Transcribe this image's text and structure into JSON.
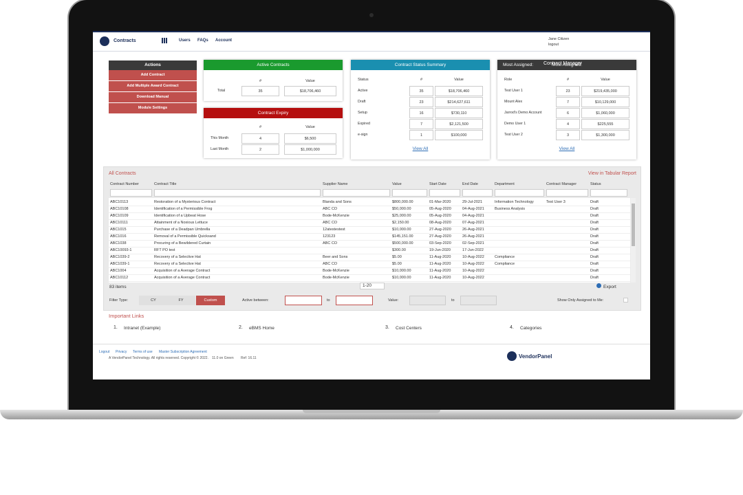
{
  "header": {
    "app": "Contracts",
    "nav": [
      "Users",
      "FAQs",
      "Account"
    ],
    "user": "Jane Citizen",
    "logout": "logout"
  },
  "actions": {
    "title": "Actions",
    "buttons": [
      "Add Contract",
      "Add Multiple Award Contract",
      "Download Manual",
      "Module Settings"
    ]
  },
  "active_contracts": {
    "title": "Active Contracts",
    "columns": [
      "#",
      "Value"
    ],
    "rows": [
      [
        "Total",
        35,
        "$18,706,460"
      ]
    ]
  },
  "contract_expiry": {
    "title": "Contract Expiry",
    "columns": [
      "#",
      "Value"
    ],
    "rows": [
      [
        "This Month",
        4,
        "$6,500"
      ],
      [
        "Last Month",
        2,
        "$1,000,000"
      ]
    ]
  },
  "status_summary": {
    "title": "Contract Status Summary",
    "columns": [
      "Status",
      "#",
      "Value"
    ],
    "rows": [
      [
        "Active",
        35,
        "$18,706,460"
      ],
      [
        "Draft",
        23,
        "$214,627,611"
      ],
      [
        "Setup",
        16,
        "$730,110"
      ],
      [
        "Expired",
        7,
        "$2,121,500"
      ],
      [
        "e-sign",
        1,
        "$100,000"
      ]
    ],
    "link": "View All"
  },
  "most_assigned": {
    "title": "Most Assigned:",
    "selected": "Contract Manager",
    "columns": [
      "Role",
      "#",
      "Value"
    ],
    "rows": [
      [
        "Test User 1",
        23,
        "$219,435,000"
      ],
      [
        "Mount Alex",
        7,
        "$10,129,000"
      ],
      [
        "Jarrod's Demo Account",
        6,
        "$1,060,000"
      ],
      [
        "Demo User 1",
        4,
        "$225,555"
      ],
      [
        "Test User 2",
        3,
        "$1,300,000"
      ]
    ],
    "link": "View All"
  },
  "all_contracts": {
    "title": "All Contracts",
    "report_link": "View in Tabular Report",
    "columns": [
      "Contract Number",
      "Contract Title",
      "Supplier Name",
      "Value",
      "Start Date",
      "End Date",
      "Department",
      "Contract Manager",
      "Status"
    ],
    "rows": [
      [
        "ABC10113",
        "Restoration of a Mysterious Contract",
        "Blanda and Sons",
        "$800,000.00",
        "01-Mar-2020",
        "29-Jul-2021",
        "Information Technology",
        "Test User 3",
        "Draft"
      ],
      [
        "ABC10108",
        "Identification of a Permissible Frog",
        "ABC CO",
        "$50,000.00",
        "05-Aug-2020",
        "04-Aug-2021",
        "Business Analysis",
        null,
        "Draft"
      ],
      [
        "ABC10109",
        "Identification of a Upbeat Hose",
        "Bode-McKenzie",
        "$25,000.00",
        "05-Aug-2020",
        "04-Aug-2021",
        null,
        null,
        "Draft"
      ],
      [
        "ABC10111",
        "Attainment of a Noxious Lettuce",
        "ABC CO",
        "$2,150.00",
        "08-Aug-2020",
        "07-Aug-2021",
        null,
        null,
        "Draft"
      ],
      [
        "ABC1015",
        "Purchase of a Deadpan Umbrella",
        "12atestestest",
        "$10,000.00",
        "27-Aug-2020",
        "26-Aug-2021",
        null,
        null,
        "Draft"
      ],
      [
        "ABC1016",
        "Removal of a Permissible Quicksand",
        "123123",
        "$145,151.00",
        "27-Aug-2020",
        "26-Aug-2021",
        null,
        null,
        "Draft"
      ],
      [
        "ABC1038",
        "Procuring of a Bewildered Curtain",
        "ABC CO",
        "$500,000.00",
        "03-Sep-2020",
        "02-Sep-2021",
        null,
        null,
        "Draft"
      ],
      [
        "ABC10093-1",
        "RFT PO test",
        null,
        "$300.00",
        "19-Jun-2020",
        "17-Jun-2022",
        null,
        null,
        "Draft"
      ],
      [
        "ABC1039-2",
        "Recovery of a Selective Hat",
        "Beer and Sons",
        "$5.00",
        "11-Aug-2020",
        "10-Aug-2022",
        "Compliance",
        null,
        "Draft"
      ],
      [
        "ABC1039-1",
        "Recovery of a Selective Hat",
        "ABC CO",
        "$5.00",
        "11-Aug-2020",
        "10-Aug-2022",
        "Compliance",
        null,
        "Draft"
      ],
      [
        "ABC1004",
        "Acquisition of a Average Contract",
        "Bode-McKenzie",
        "$10,000.00",
        "11-Aug-2020",
        "10-Aug-2022",
        null,
        null,
        "Draft"
      ],
      [
        "ABC10112",
        "Acquisition of a Average Contract",
        "Bode-McKenzie",
        "$10,000.00",
        "11-Aug-2020",
        "10-Aug-2022",
        null,
        null,
        "Draft"
      ]
    ],
    "item_count": "83 items",
    "page_size": "1-20",
    "export": "Export"
  },
  "filter": {
    "label": "Filter Type:",
    "options": [
      "CY",
      "FY",
      "Custom"
    ],
    "active_between": "Active between:",
    "to": "to",
    "value": "Value:",
    "show_assigned": "Show Only Assigned to Me:"
  },
  "important_links": {
    "title": "Important Links",
    "items": [
      {
        "number": "1.",
        "label": "Intranet (Example)"
      },
      {
        "number": "2.",
        "label": "eBMS Home"
      },
      {
        "number": "3.",
        "label": "Cost Centers"
      },
      {
        "number": "4.",
        "label": "Categories"
      }
    ]
  },
  "footer": {
    "links": [
      "Logout",
      "Privacy",
      "Terms of use",
      "Master Subscription Agreement"
    ],
    "copyright": "A VendorPanel Technology. All rights reserved. Copyright © 2022.",
    "version": "11.0 on Green",
    "ref": "Ref: 16.11",
    "brand": "VendorPanel"
  }
}
